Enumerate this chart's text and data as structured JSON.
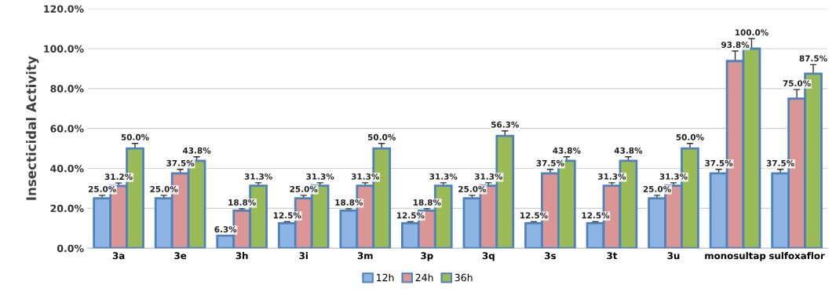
{
  "chart_data": {
    "type": "bar",
    "ylabel": "Insecticidal Activity",
    "categories": [
      "3a",
      "3e",
      "3h",
      "3i",
      "3m",
      "3p",
      "3q",
      "3s",
      "3t",
      "3u",
      "monosultap",
      "sulfoxaflor"
    ],
    "series": [
      {
        "name": "12h",
        "color": "#8db4e2",
        "values": [
          25.0,
          25.0,
          6.3,
          12.5,
          18.8,
          12.5,
          25.0,
          12.5,
          12.5,
          25.0,
          37.5,
          37.5
        ],
        "errors": [
          1.5,
          1.5,
          0,
          0.8,
          1,
          0.8,
          1.5,
          0.8,
          0.8,
          1.5,
          2,
          2
        ],
        "value_labels": [
          "25.0%",
          "25.0%",
          "6.3%",
          "12.5%",
          "18.8%",
          "12.5%",
          "25.0%",
          "12.5%",
          "12.5%",
          "25.0%",
          "37.5%",
          "37.5%"
        ]
      },
      {
        "name": "24h",
        "color": "#da9694",
        "values": [
          31.2,
          37.5,
          18.8,
          25.0,
          31.3,
          18.8,
          31.3,
          37.5,
          31.3,
          31.3,
          93.8,
          75.0
        ],
        "errors": [
          1.5,
          2,
          1,
          1.5,
          1.5,
          1,
          1.5,
          2,
          1.5,
          1.5,
          5,
          4.5
        ],
        "value_labels": [
          "31.2%",
          "37.5%",
          "18.8%",
          "25.0%",
          "31.3%",
          "18.8%",
          "31.3%",
          "37.5%",
          "31.3%",
          "31.3%",
          "93.8%",
          "75.0%"
        ]
      },
      {
        "name": "36h",
        "color": "#9bbb59",
        "values": [
          50.0,
          43.8,
          31.3,
          31.3,
          50.0,
          31.3,
          56.3,
          43.8,
          43.8,
          50.0,
          100.0,
          87.5
        ],
        "errors": [
          2.5,
          2,
          1.5,
          1.5,
          2.5,
          1.5,
          2.5,
          2,
          2,
          2.5,
          5,
          4.5
        ],
        "value_labels": [
          "50.0%",
          "43.8%",
          "31.3%",
          "31.3%",
          "50.0%",
          "31.3%",
          "56.3%",
          "43.8%",
          "43.8%",
          "50.0%",
          "100.0%",
          "87.5%"
        ]
      }
    ],
    "ylim": [
      0,
      120
    ],
    "yticks": [
      {
        "value": 0,
        "label": "0.0%"
      },
      {
        "value": 20,
        "label": "20.0%"
      },
      {
        "value": 40,
        "label": "40.0%"
      },
      {
        "value": 60,
        "label": "60.0%"
      },
      {
        "value": 80,
        "label": "80.0%"
      },
      {
        "value": 100,
        "label": "100.0%"
      },
      {
        "value": 120,
        "label": "120.0%"
      }
    ],
    "grid": "y",
    "legend": "bottom"
  }
}
